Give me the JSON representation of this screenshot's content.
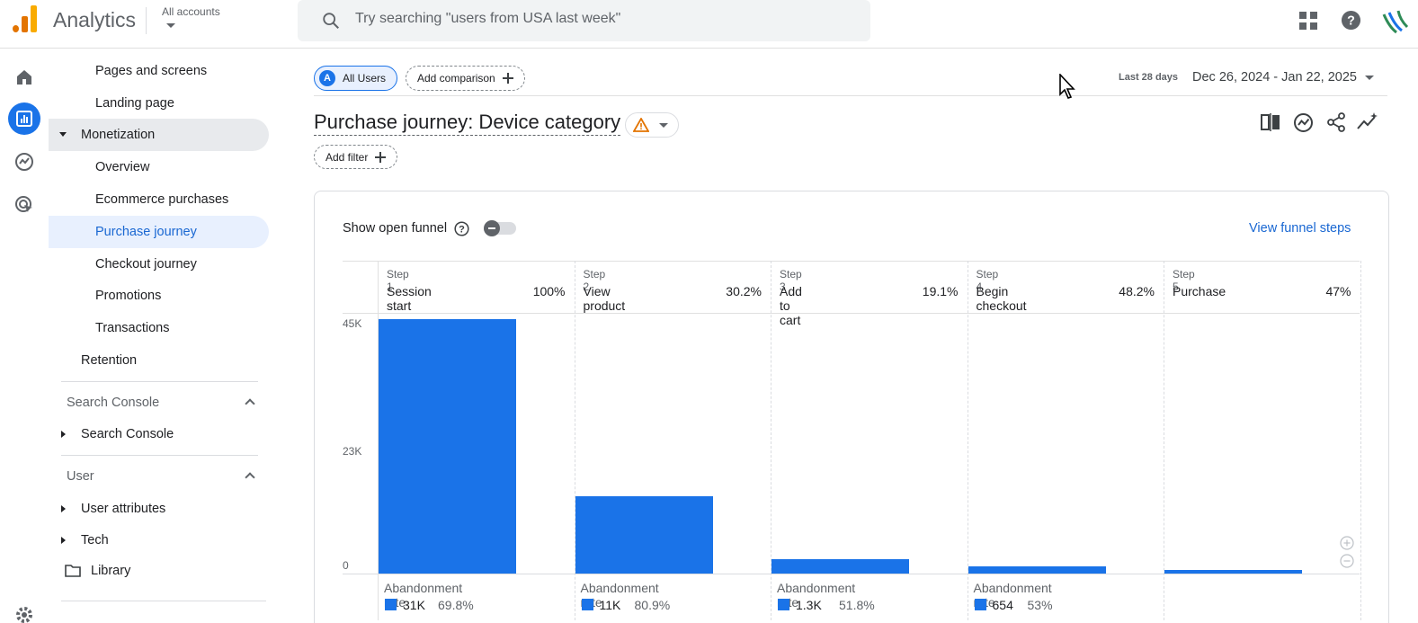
{
  "app": {
    "title": "Analytics",
    "accounts_label": "All accounts"
  },
  "search": {
    "placeholder": "Try searching \"users from USA last week\""
  },
  "icons": {
    "apps": "apps-grid-icon",
    "help": "help-icon",
    "account": "account-avatar-icon",
    "home": "home-icon",
    "reports": "reports-icon",
    "explore": "explore-icon",
    "advertising": "advertising-icon",
    "settings": "settings-gear-icon"
  },
  "sidebar": {
    "items": [
      {
        "label": "Pages and screens"
      },
      {
        "label": "Landing page"
      },
      {
        "label": "Monetization"
      },
      {
        "label": "Overview"
      },
      {
        "label": "Ecommerce purchases"
      },
      {
        "label": "Purchase journey"
      },
      {
        "label": "Checkout journey"
      },
      {
        "label": "Promotions"
      },
      {
        "label": "Transactions"
      },
      {
        "label": "Retention"
      },
      {
        "label": "Search Console"
      },
      {
        "label": "User attributes"
      },
      {
        "label": "Tech"
      },
      {
        "label": "Library"
      }
    ],
    "sections": {
      "search_console": "Search Console",
      "user": "User"
    }
  },
  "toolbar": {
    "all_users_avatar": "A",
    "all_users": "All Users",
    "add_comparison": "Add comparison",
    "date_label": "Last 28 days",
    "date_range": "Dec 26, 2024 - Jan 22, 2025"
  },
  "report": {
    "title": "Purchase journey: Device category",
    "add_filter": "Add filter",
    "show_open_funnel": "Show open funnel",
    "open_funnel_on": false,
    "view_funnel_steps": "View funnel steps"
  },
  "colors": {
    "accent": "#1a73e8",
    "link": "#1967d2",
    "warning": "#e37400"
  },
  "chart_data": {
    "type": "bar",
    "y_ticks": [
      "45K",
      "23K",
      "0"
    ],
    "ylim": [
      0,
      45000
    ],
    "steps": [
      {
        "step": "Step 1",
        "name": "Session start",
        "pct": "100%",
        "value": 45000,
        "abandon_label": "Abandonment rate",
        "abandon_count": "31K",
        "abandon_rate": "69.8%"
      },
      {
        "step": "Step 2",
        "name": "View product",
        "pct": "30.2%",
        "value": 13600,
        "abandon_label": "Abandonment rate",
        "abandon_count": "11K",
        "abandon_rate": "80.9%"
      },
      {
        "step": "Step 3",
        "name": "Add to cart",
        "pct": "19.1%",
        "value": 2600,
        "abandon_label": "Abandonment rate",
        "abandon_count": "1.3K",
        "abandon_rate": "51.8%"
      },
      {
        "step": "Step 4",
        "name": "Begin checkout",
        "pct": "48.2%",
        "value": 1250,
        "abandon_label": "Abandonment rate",
        "abandon_count": "654",
        "abandon_rate": "53%"
      },
      {
        "step": "Step 5",
        "name": "Purchase",
        "pct": "47%",
        "value": 590,
        "abandon_label": "",
        "abandon_count": "",
        "abandon_rate": ""
      }
    ]
  }
}
